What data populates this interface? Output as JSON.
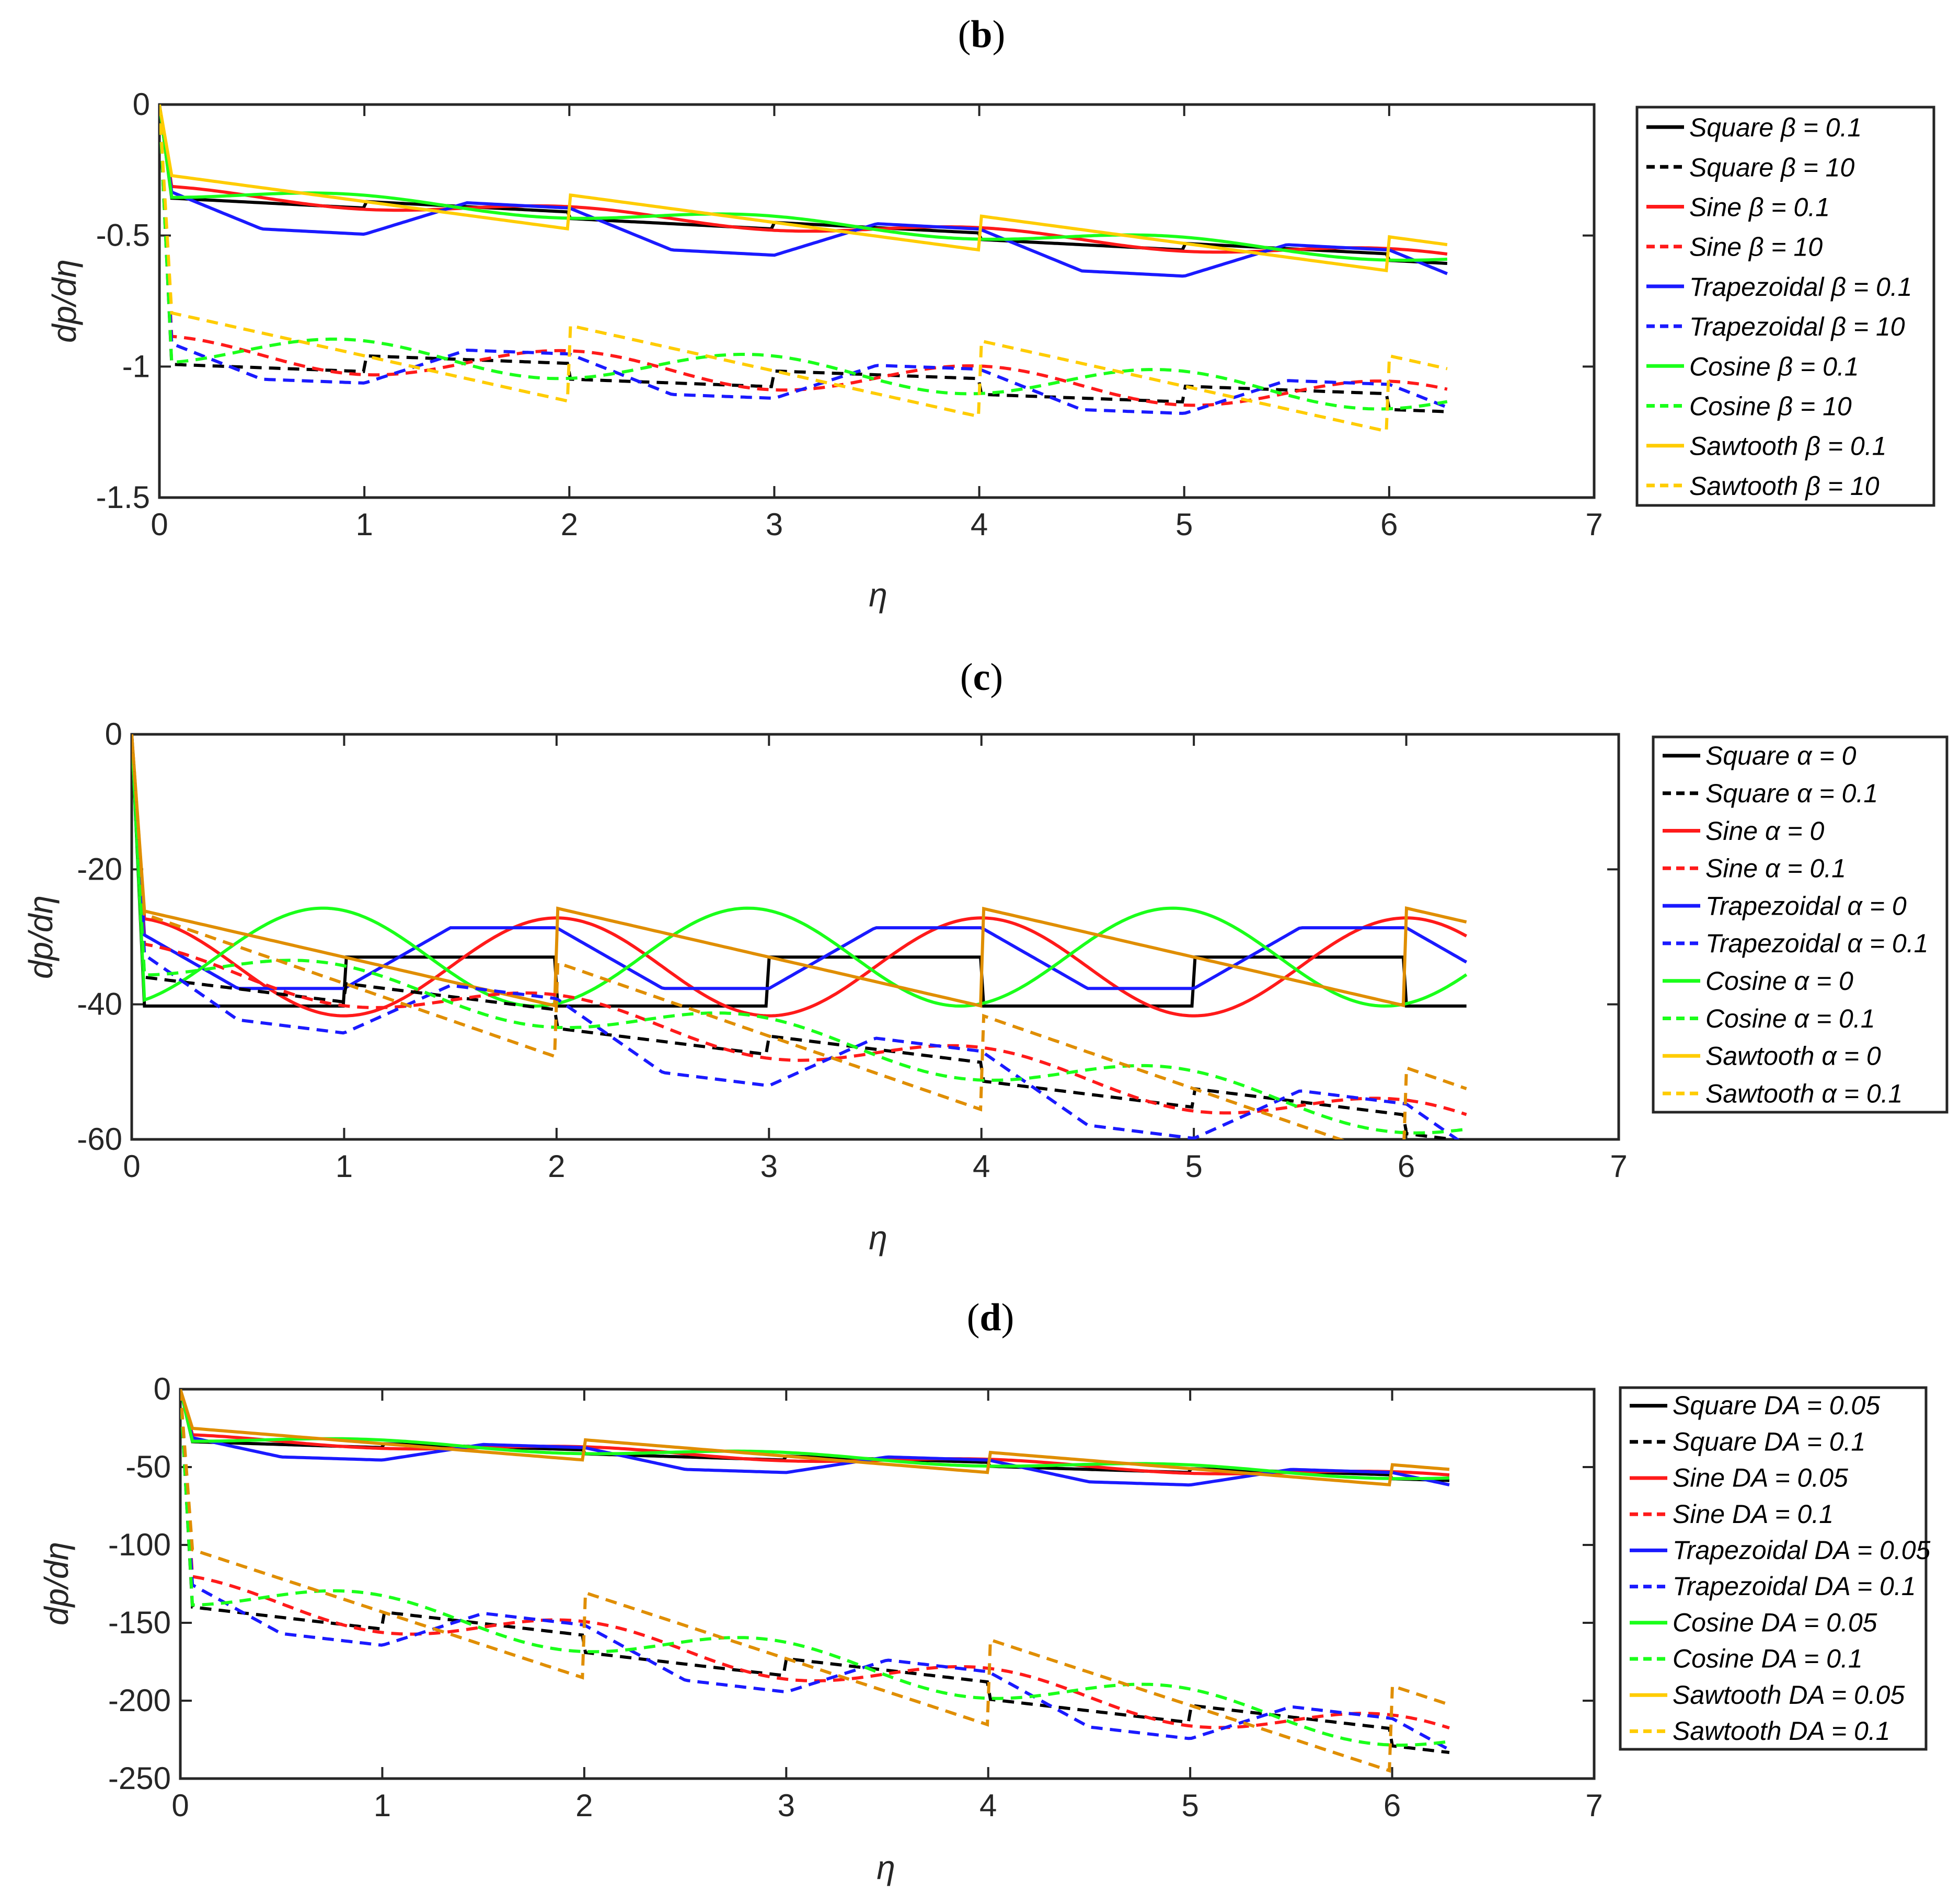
{
  "colors": {
    "square": "#000000",
    "sine": "#ff1a1a",
    "trapezoidal": "#1a1aff",
    "cosine": "#1aff1a",
    "sawtooth_b": "#ffcc00",
    "sawtooth_cd": "#e08e00",
    "legend_sawtooth": "#ffcc00"
  },
  "chart_data": [
    {
      "type": "line",
      "panel": "b",
      "title_letter": "b",
      "xlabel": "η",
      "ylabel": "dp/dη",
      "xlim": [
        0,
        7
      ],
      "ylim": [
        -1.5,
        0
      ],
      "xticks": [
        "0",
        "1",
        "2",
        "3",
        "4",
        "5",
        "6",
        "7"
      ],
      "yticks": [
        "0",
        "-0.5",
        "-1",
        "-1.5"
      ],
      "ytick_values": [
        0,
        -0.5,
        -1,
        -1.5
      ],
      "legend": [
        "Square β = 0.1",
        "Square β = 10",
        "Sine β = 0.1",
        "Sine β = 10",
        "Trapezoidal β = 0.1",
        "Trapezoidal β = 10",
        "Cosine β = 0.1",
        "Cosine β = 10",
        "Sawtooth β = 0.1",
        "Sawtooth β = 10"
      ],
      "series_params": {
        "solid": {
          "base": -0.33,
          "slope": -0.04,
          "amp": 0.05,
          "dip": 0.14,
          "saw_amp": 0.13
        },
        "dashed": {
          "base": -0.93,
          "slope": -0.029,
          "amp": 0.12,
          "dip": 0.14,
          "saw_amp": 0.29
        }
      }
    },
    {
      "type": "line",
      "panel": "c",
      "title_letter": "c",
      "xlabel": "η",
      "ylabel": "dp/dη",
      "xlim": [
        0,
        7
      ],
      "ylim": [
        -60,
        0
      ],
      "xticks": [
        "0",
        "1",
        "2",
        "3",
        "4",
        "5",
        "6",
        "7"
      ],
      "yticks": [
        "0",
        "-20",
        "-40",
        "-60"
      ],
      "ytick_values": [
        0,
        -20,
        -40,
        -60
      ],
      "legend": [
        "Square α = 0",
        "Square α = 0.1",
        "Sine α = 0",
        "Sine α = 0.1",
        "Trapezoidal α = 0",
        "Trapezoidal α = 0.1",
        "Cosine α = 0",
        "Cosine α = 0.1",
        "Sawtooth α = 0",
        "Sawtooth α = 0.1"
      ],
      "series_params": {
        "solid": {
          "base": -33,
          "slope": 0,
          "amp": 14.5,
          "dip": 9,
          "saw_amp": 14.5
        },
        "dashed": {
          "base": -33,
          "slope": -3.9,
          "amp": 5.5,
          "dip": 9,
          "saw_amp": 14
        }
      }
    },
    {
      "type": "line",
      "panel": "d",
      "title_letter": "d",
      "xlabel": "η",
      "ylabel": "dp/dη",
      "xlim": [
        0,
        7
      ],
      "ylim": [
        -250,
        0
      ],
      "xticks": [
        "0",
        "1",
        "2",
        "3",
        "4",
        "5",
        "6",
        "7"
      ],
      "yticks": [
        "0",
        "-50",
        "-100",
        "-150",
        "-200",
        "-250"
      ],
      "ytick_values": [
        0,
        -50,
        -100,
        -150,
        -200,
        -250
      ],
      "legend": [
        "Square DA = 0.05",
        "Square DA = 0.1",
        "Sine DA = 0.05",
        "Sine DA = 0.1",
        "Trapezoidal DA = 0.05",
        "Trapezoidal DA = 0.1",
        "Cosine DA = 0.05",
        "Cosine DA = 0.1",
        "Sawtooth DA = 0.05",
        "Sawtooth DA = 0.1"
      ],
      "series_params": {
        "solid": {
          "base": -31,
          "slope": -4,
          "amp": 5,
          "dip": 12,
          "saw_amp": 13
        },
        "dashed": {
          "base": -128,
          "slope": -15,
          "amp": 22,
          "dip": 28,
          "saw_amp": 55
        }
      }
    }
  ]
}
